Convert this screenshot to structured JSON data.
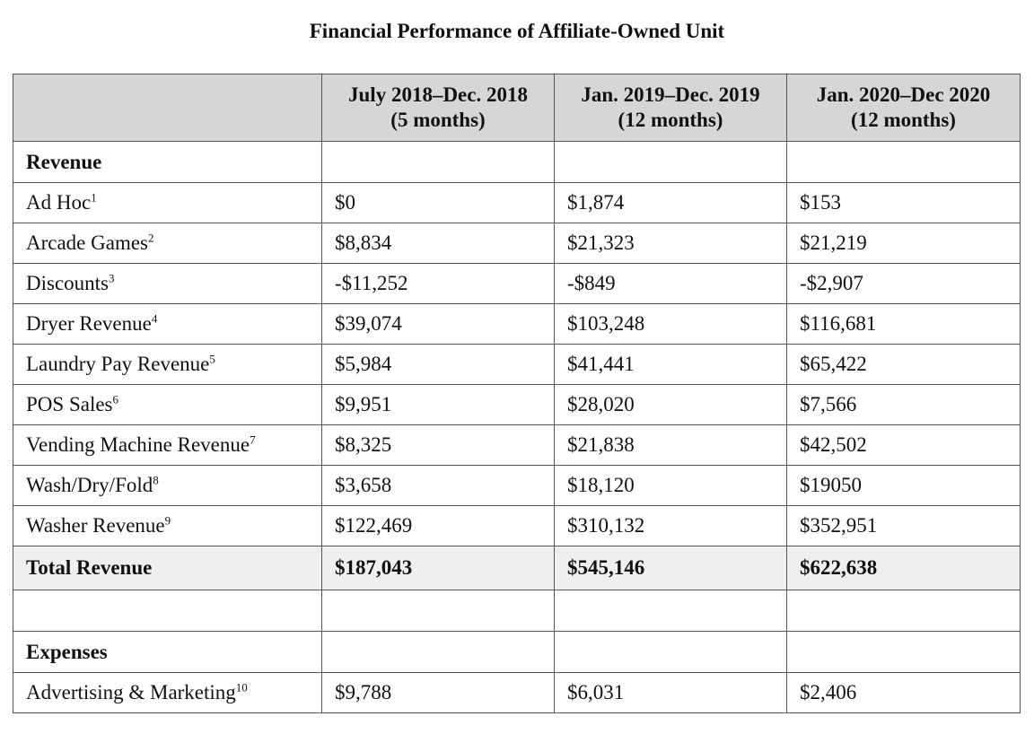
{
  "title": "Financial Performance of Affiliate-Owned Unit",
  "columns": [
    {
      "line1": "July 2018–Dec. 2018",
      "line2": "(5 months)"
    },
    {
      "line1": "Jan. 2019–Dec. 2019",
      "line2": "(12 months)"
    },
    {
      "line1": "Jan. 2020–Dec 2020",
      "line2": "(12 months)"
    }
  ],
  "revenue_heading": "Revenue",
  "revenue_rows": [
    {
      "label": "Ad Hoc",
      "note": "1",
      "values": [
        "$0",
        "$1,874",
        "$153"
      ]
    },
    {
      "label": "Arcade Games",
      "note": "2",
      "values": [
        "$8,834",
        "$21,323",
        "$21,219"
      ]
    },
    {
      "label": "Discounts",
      "note": "3",
      "values": [
        "-$11,252",
        "-$849",
        "-$2,907"
      ]
    },
    {
      "label": "Dryer Revenue",
      "note": "4",
      "values": [
        "$39,074",
        "$103,248",
        "$116,681"
      ]
    },
    {
      "label": "Laundry Pay Revenue",
      "note": "5",
      "values": [
        "$5,984",
        "$41,441",
        "$65,422"
      ]
    },
    {
      "label": "POS Sales",
      "note": "6",
      "values": [
        "$9,951",
        "$28,020",
        "$7,566"
      ]
    },
    {
      "label": "Vending Machine Revenue",
      "note": "7",
      "values": [
        "$8,325",
        "$21,838",
        "$42,502"
      ]
    },
    {
      "label": "Wash/Dry/Fold",
      "note": "8",
      "values": [
        "$3,658",
        "$18,120",
        "$19050"
      ]
    },
    {
      "label": "Washer Revenue",
      "note": "9",
      "values": [
        "$122,469",
        "$310,132",
        "$352,951"
      ]
    }
  ],
  "total_revenue": {
    "label": "Total Revenue",
    "values": [
      "$187,043",
      "$545,146",
      "$622,638"
    ]
  },
  "expenses_heading": "Expenses",
  "expense_rows": [
    {
      "label": "Advertising & Marketing",
      "note": "10",
      "values": [
        "$9,788",
        "$6,031",
        "$2,406"
      ]
    }
  ]
}
